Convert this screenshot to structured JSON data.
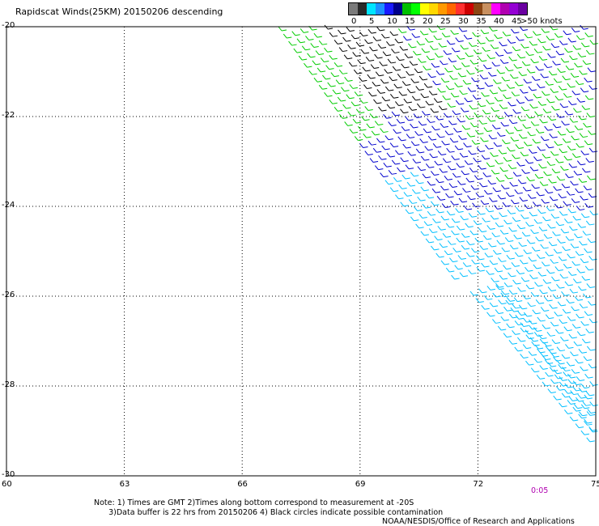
{
  "title": "Rapidscat Winds(25KM) 20150206 descending",
  "legend": {
    "bins": [
      {
        "label": "0",
        "color": "#7a7a7a"
      },
      {
        "label": "",
        "color": "#2a2a2a"
      },
      {
        "label": "5",
        "color": "#00e5ff"
      },
      {
        "label": "",
        "color": "#1e90ff"
      },
      {
        "label": "10",
        "color": "#1a1aff"
      },
      {
        "label": "",
        "color": "#00008b"
      },
      {
        "label": "15",
        "color": "#00c000"
      },
      {
        "label": "",
        "color": "#00ff00"
      },
      {
        "label": "20",
        "color": "#ffff00"
      },
      {
        "label": "",
        "color": "#ffd700"
      },
      {
        "label": "25",
        "color": "#ff9900"
      },
      {
        "label": "",
        "color": "#ff6600"
      },
      {
        "label": "30",
        "color": "#ff3030"
      },
      {
        "label": "",
        "color": "#cc0000"
      },
      {
        "label": "35",
        "color": "#8b4513"
      },
      {
        "label": "",
        "color": "#c89060"
      },
      {
        "label": "40",
        "color": "#ff00ff"
      },
      {
        "label": "",
        "color": "#b000b0"
      },
      {
        "label": "45",
        "color": "#9400d3"
      },
      {
        "label": ">50 knots",
        "color": "#6a00a0"
      }
    ]
  },
  "axes": {
    "lon_labels": [
      "60",
      "63",
      "66",
      "69",
      "72",
      "75"
    ],
    "lat_labels": [
      "-20",
      "-22",
      "-24",
      "-26",
      "-28",
      "-30"
    ],
    "lon_range": [
      60,
      75
    ],
    "lat_range": [
      -20,
      -30
    ],
    "grid": "dotted"
  },
  "time_label": "0:05",
  "notes": [
    "Note: 1) Times are GMT 2)Times along bottom correspond to measurement at -20S",
    "      3)Data buffer is 22 hrs from 20150206 4) Black circles indicate possible contamination"
  ],
  "credit": "NOAA/NESDIS/Office of Research and Applications",
  "wind_colors": {
    "calm": "#000000",
    "light": "#00bfff",
    "moderate": "#0000cd",
    "fresh": "#00cc00"
  }
}
